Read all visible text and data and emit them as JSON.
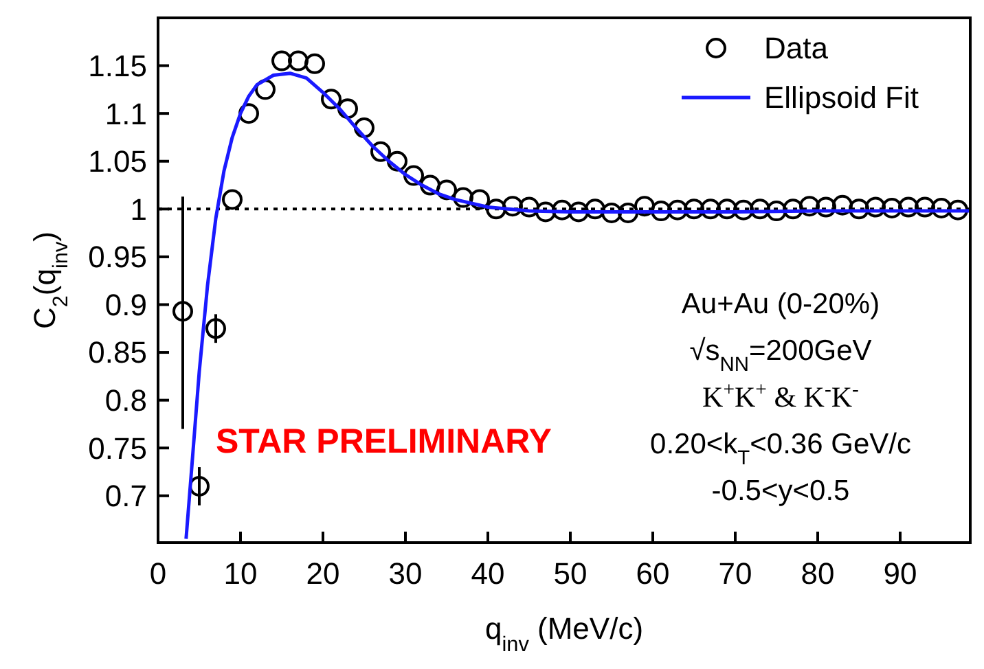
{
  "chart_data": {
    "type": "scatter",
    "xlabel": "q$_{inv}$ (MeV/c)",
    "ylabel": "C$_{2}$(q$_{inv}$)",
    "xlim": [
      0,
      98.5
    ],
    "ylim": [
      0.651,
      1.2
    ],
    "xticks": [
      0,
      10,
      20,
      30,
      40,
      50,
      60,
      70,
      80,
      90
    ],
    "yticks": [
      0.7,
      0.75,
      0.8,
      0.85,
      0.9,
      0.95,
      1,
      1.05,
      1.1,
      1.15
    ],
    "grid": false,
    "legend": "top right",
    "ref_lines": [
      {
        "axis": "y",
        "value": 1,
        "line_style": "dotted",
        "color": "#000000"
      }
    ],
    "annotations": [
      "Au+Au (0-20%)",
      "√s$_{NN}$=200GeV",
      "K$^{+}$K$^{+}$ & K$^{-}$K$^{-}$",
      "0.20<k$_{T}$<0.36 GeV/c",
      "-0.5<y<0.5",
      "STAR PRELIMINARY"
    ],
    "series": [
      {
        "name": "Data",
        "marker": "circle",
        "color": "#000000",
        "x": [
          3,
          5,
          7,
          9,
          11,
          13,
          15,
          17,
          19,
          21,
          23,
          25,
          27,
          29,
          31,
          33,
          35,
          37,
          39,
          41,
          43,
          45,
          47,
          49,
          51,
          53,
          55,
          57,
          59,
          61,
          63,
          65,
          67,
          69,
          71,
          73,
          75,
          77,
          79,
          81,
          83,
          85,
          87,
          89,
          91,
          93,
          95,
          97
        ],
        "values": [
          0.893,
          0.71,
          0.875,
          1.01,
          1.1,
          1.125,
          1.155,
          1.155,
          1.152,
          1.115,
          1.105,
          1.085,
          1.06,
          1.05,
          1.035,
          1.025,
          1.02,
          1.012,
          1.01,
          1.0,
          1.003,
          1.002,
          0.997,
          0.999,
          0.997,
          1.0,
          0.996,
          0.996,
          1.003,
          0.998,
          0.999,
          1.0,
          1.0,
          1.0,
          0.999,
          1.0,
          0.998,
          1.0,
          1.003,
          1.002,
          1.004,
          1.0,
          1.002,
          1.001,
          1.002,
          1.002,
          1.001,
          0.999
        ],
        "errors": [
          [
            0.77,
            1.013
          ],
          [
            0.69,
            0.73
          ],
          [
            0.86,
            0.89
          ],
          null,
          null,
          null,
          null,
          null,
          null,
          null,
          null,
          null,
          null,
          null,
          null,
          null,
          null,
          null,
          null,
          null,
          null,
          null,
          null,
          null,
          null,
          null,
          null,
          null,
          null,
          null,
          null,
          null,
          null,
          null,
          null,
          null,
          null,
          null,
          null,
          null,
          null,
          null,
          null,
          null,
          null,
          null,
          null,
          null
        ]
      },
      {
        "name": "Ellipsoid Fit",
        "type": "line",
        "marker": "none",
        "color": "#1a1aff",
        "line_style": "solid",
        "x": [
          3.4,
          4,
          5,
          6,
          7,
          8,
          9,
          10,
          11,
          12,
          14,
          16,
          18,
          20,
          22,
          24,
          26,
          28,
          30,
          32,
          34,
          36,
          40,
          45,
          50,
          60,
          70,
          80,
          98.5
        ],
        "values": [
          0.655,
          0.72,
          0.83,
          0.92,
          0.99,
          1.04,
          1.075,
          1.1,
          1.118,
          1.13,
          1.14,
          1.142,
          1.137,
          1.122,
          1.105,
          1.085,
          1.066,
          1.05,
          1.036,
          1.025,
          1.016,
          1.01,
          1.002,
          0.998,
          0.997,
          0.997,
          0.997,
          0.998,
          0.998
        ]
      }
    ]
  }
}
